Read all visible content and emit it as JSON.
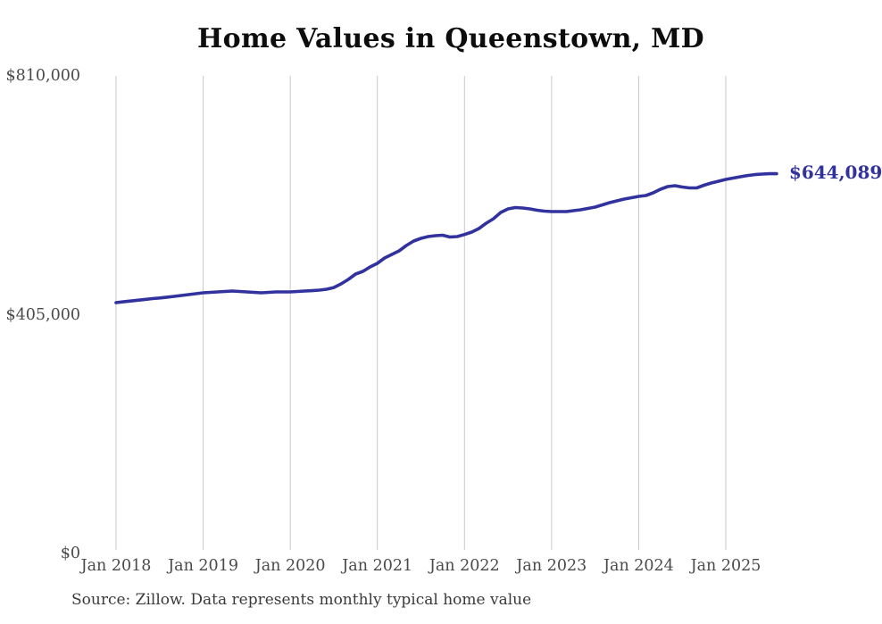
{
  "header": {
    "title": "Home Values in Queenstown, MD"
  },
  "chart_data": {
    "type": "line",
    "title": "Home Values in Queenstown, MD",
    "x_range": {
      "start": "2018-01",
      "end": "2025-08",
      "frequency": "monthly"
    },
    "x_tick_labels": [
      "Jan 2018",
      "Jan 2019",
      "Jan 2020",
      "Jan 2021",
      "Jan 2022",
      "Jan 2023",
      "Jan 2024",
      "Jan 2025"
    ],
    "y_tick_labels": [
      "$810,000",
      "$405,000",
      "$0"
    ],
    "y_tick_values": [
      810000,
      405000,
      0
    ],
    "ylim": [
      0,
      810000
    ],
    "grid": "vertical-only",
    "legend": "none",
    "end_label": "$644,089",
    "end_value": 644089,
    "values": [
      425400,
      426800,
      428200,
      429600,
      430900,
      432200,
      433300,
      434600,
      436000,
      437500,
      439000,
      440600,
      442100,
      442900,
      443600,
      444400,
      445100,
      444400,
      443600,
      442900,
      442100,
      442900,
      443600,
      443600,
      443600,
      444300,
      445100,
      445800,
      446600,
      448100,
      451100,
      457200,
      464800,
      473900,
      478400,
      486000,
      492000,
      501100,
      507200,
      513200,
      522300,
      529900,
      534400,
      537500,
      539000,
      539700,
      536700,
      537500,
      541000,
      545000,
      551100,
      560200,
      567700,
      578300,
      584400,
      586700,
      586000,
      584400,
      582100,
      580600,
      579900,
      579900,
      579900,
      581400,
      582900,
      585200,
      587400,
      591200,
      595000,
      598000,
      601100,
      603400,
      605600,
      607100,
      611700,
      617700,
      622300,
      623800,
      621500,
      620000,
      620000,
      624500,
      628300,
      631300,
      634400,
      636600,
      638900,
      641100,
      642600,
      643400,
      644000,
      644089
    ]
  },
  "footer": {
    "source": "Source: Zillow. Data represents monthly typical home value"
  },
  "colors": {
    "line": "#32329E",
    "end_label": "#32329E",
    "grid": "#C9C9C9",
    "axis_text": "#4A4A4A",
    "title_text": "#0D0D0D",
    "source_text": "#3A3A3A",
    "background": "#FFFFFF"
  }
}
